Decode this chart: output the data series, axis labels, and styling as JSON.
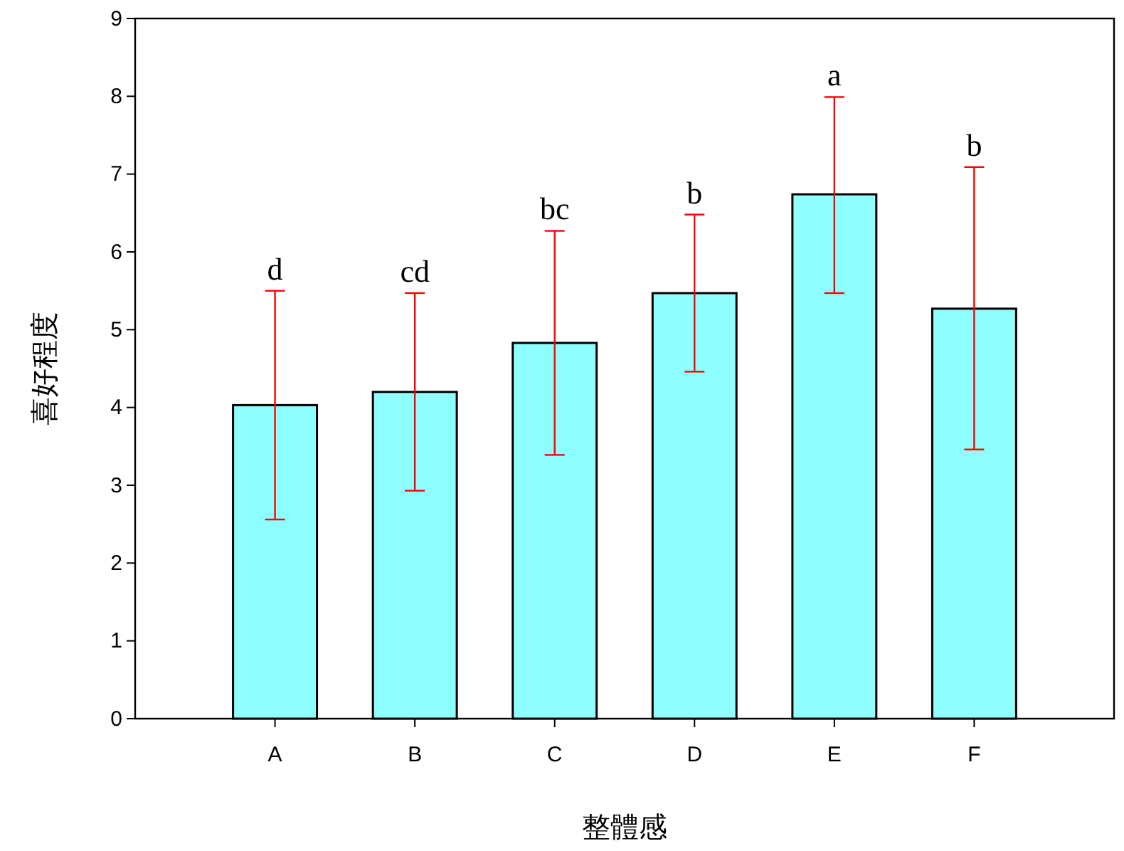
{
  "chart_data": {
    "type": "bar",
    "xlabel": "整體感",
    "ylabel": "喜好程度",
    "categories": [
      "A",
      "B",
      "C",
      "D",
      "E",
      "F"
    ],
    "values": [
      4.03,
      4.2,
      4.83,
      5.47,
      6.74,
      5.27
    ],
    "errors": [
      [
        2.56,
        5.5
      ],
      [
        2.93,
        5.47
      ],
      [
        3.39,
        6.27
      ],
      [
        4.46,
        6.48
      ],
      [
        5.47,
        7.99
      ],
      [
        3.46,
        7.09
      ]
    ],
    "color": "#8effff",
    "ylim": [
      0,
      9
    ],
    "yticks": [
      0,
      1,
      2,
      3,
      4,
      5,
      6,
      7,
      8,
      9
    ],
    "grid": false,
    "annotations": [
      {
        "text": "d",
        "x": "A",
        "y": 5.5
      },
      {
        "text": "cd",
        "x": "B",
        "y": 5.47
      },
      {
        "text": "bc",
        "x": "C",
        "y": 6.27
      },
      {
        "text": "b",
        "x": "D",
        "y": 6.48
      },
      {
        "text": "a",
        "x": "E",
        "y": 7.99
      },
      {
        "text": "b",
        "x": "F",
        "y": 7.09
      }
    ]
  }
}
